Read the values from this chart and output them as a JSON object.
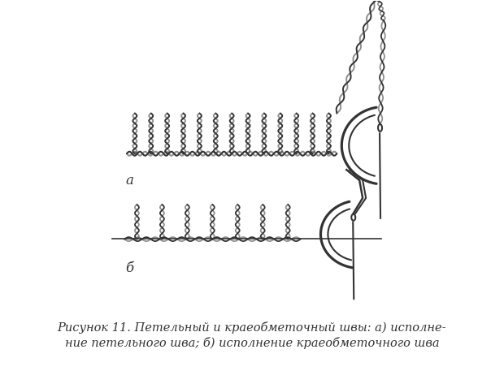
{
  "figure_width": 6.2,
  "figure_height": 4.57,
  "dpi": 100,
  "bg_color": "#ffffff",
  "line_color": "#333333",
  "caption_line1": "Рисунок 11. Петельный и краеобметочный швы: а) исполне-",
  "caption_line2": "ние петельного шва; б) исполнение краеобметочного шва",
  "caption_fontsize": 10.5,
  "label_a": "а",
  "label_b": "б",
  "label_fontsize": 12
}
